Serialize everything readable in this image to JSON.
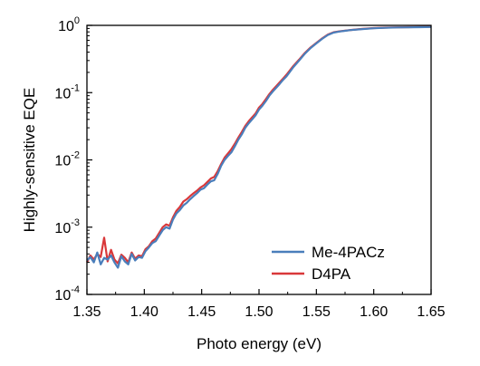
{
  "chart_data": {
    "type": "line",
    "title": "",
    "xlabel": "Photo energy (eV)",
    "ylabel": "Highly-sensitive EQE",
    "xlim": [
      1.35,
      1.65
    ],
    "ylim": [
      0.0001,
      1
    ],
    "yscale": "log",
    "grid": false,
    "legend_position": "bottom-right",
    "x_ticks": [
      {
        "value": 1.35,
        "label": "1.35"
      },
      {
        "value": 1.4,
        "label": "1.40"
      },
      {
        "value": 1.45,
        "label": "1.45"
      },
      {
        "value": 1.5,
        "label": "1.50"
      },
      {
        "value": 1.55,
        "label": "1.55"
      },
      {
        "value": 1.6,
        "label": "1.60"
      },
      {
        "value": 1.65,
        "label": "1.65"
      }
    ],
    "y_ticks": [
      {
        "value": 0.0001,
        "base": "10",
        "exp": "-4"
      },
      {
        "value": 0.001,
        "base": "10",
        "exp": "-3"
      },
      {
        "value": 0.01,
        "base": "10",
        "exp": "-2"
      },
      {
        "value": 0.1,
        "base": "10",
        "exp": "-1"
      },
      {
        "value": 1,
        "base": "10",
        "exp": "0"
      }
    ],
    "series": [
      {
        "name": "Me-4PACz",
        "color": "#4A7EBB",
        "x": [
          1.35,
          1.353,
          1.356,
          1.359,
          1.362,
          1.365,
          1.368,
          1.371,
          1.374,
          1.377,
          1.38,
          1.383,
          1.386,
          1.389,
          1.392,
          1.395,
          1.398,
          1.401,
          1.404,
          1.407,
          1.41,
          1.413,
          1.416,
          1.419,
          1.422,
          1.425,
          1.428,
          1.431,
          1.434,
          1.437,
          1.44,
          1.443,
          1.446,
          1.449,
          1.452,
          1.455,
          1.458,
          1.461,
          1.464,
          1.467,
          1.47,
          1.473,
          1.476,
          1.479,
          1.482,
          1.485,
          1.488,
          1.491,
          1.494,
          1.497,
          1.5,
          1.503,
          1.506,
          1.509,
          1.512,
          1.515,
          1.518,
          1.521,
          1.524,
          1.527,
          1.53,
          1.535,
          1.54,
          1.545,
          1.55,
          1.555,
          1.56,
          1.565,
          1.57,
          1.575,
          1.58,
          1.59,
          1.6,
          1.61,
          1.62,
          1.63,
          1.64,
          1.65
        ],
        "y": [
          0.00032,
          0.00036,
          0.0003,
          0.00042,
          0.00028,
          0.00035,
          0.00033,
          0.00038,
          0.0003,
          0.00025,
          0.00037,
          0.00031,
          0.00028,
          0.0004,
          0.00032,
          0.00036,
          0.00035,
          0.00044,
          0.0005,
          0.00058,
          0.00062,
          0.00075,
          0.0009,
          0.001,
          0.00095,
          0.0013,
          0.0016,
          0.0018,
          0.0021,
          0.0023,
          0.0026,
          0.0029,
          0.0032,
          0.0036,
          0.0038,
          0.0043,
          0.0048,
          0.005,
          0.0062,
          0.0082,
          0.01,
          0.0115,
          0.013,
          0.016,
          0.02,
          0.024,
          0.03,
          0.035,
          0.04,
          0.046,
          0.056,
          0.064,
          0.075,
          0.09,
          0.104,
          0.118,
          0.135,
          0.155,
          0.175,
          0.205,
          0.24,
          0.3,
          0.38,
          0.46,
          0.54,
          0.63,
          0.72,
          0.78,
          0.81,
          0.83,
          0.85,
          0.88,
          0.905,
          0.92,
          0.93,
          0.935,
          0.94,
          0.945
        ]
      },
      {
        "name": "D4PA",
        "color": "#D9383A",
        "x": [
          1.35,
          1.353,
          1.356,
          1.359,
          1.362,
          1.365,
          1.368,
          1.371,
          1.374,
          1.377,
          1.38,
          1.383,
          1.386,
          1.389,
          1.392,
          1.395,
          1.398,
          1.401,
          1.404,
          1.407,
          1.41,
          1.413,
          1.416,
          1.419,
          1.422,
          1.425,
          1.428,
          1.431,
          1.434,
          1.437,
          1.44,
          1.443,
          1.446,
          1.449,
          1.452,
          1.455,
          1.458,
          1.461,
          1.464,
          1.467,
          1.47,
          1.473,
          1.476,
          1.479,
          1.482,
          1.485,
          1.488,
          1.491,
          1.494,
          1.497,
          1.5,
          1.503,
          1.506,
          1.509,
          1.512,
          1.515,
          1.518,
          1.521,
          1.524,
          1.527,
          1.53,
          1.535,
          1.54,
          1.545,
          1.55,
          1.555,
          1.56,
          1.565,
          1.57,
          1.575,
          1.58,
          1.59,
          1.6,
          1.61,
          1.62,
          1.63,
          1.64,
          1.65
        ],
        "y": [
          0.0003,
          0.00038,
          0.00033,
          0.0004,
          0.00036,
          0.0007,
          0.00031,
          0.00046,
          0.00033,
          0.00029,
          0.00039,
          0.00035,
          0.0003,
          0.00042,
          0.00034,
          0.00038,
          0.00037,
          0.00047,
          0.00052,
          0.00062,
          0.00068,
          0.00082,
          0.001,
          0.0011,
          0.00105,
          0.0014,
          0.00175,
          0.002,
          0.0024,
          0.0026,
          0.0029,
          0.0032,
          0.0035,
          0.0039,
          0.0042,
          0.0047,
          0.0053,
          0.0056,
          0.0068,
          0.0087,
          0.0108,
          0.0125,
          0.0145,
          0.0175,
          0.0215,
          0.026,
          0.032,
          0.0375,
          0.043,
          0.049,
          0.06,
          0.068,
          0.08,
          0.095,
          0.11,
          0.125,
          0.142,
          0.162,
          0.185,
          0.215,
          0.25,
          0.31,
          0.39,
          0.47,
          0.55,
          0.64,
          0.73,
          0.79,
          0.815,
          0.835,
          0.855,
          0.885,
          0.91,
          0.925,
          0.935,
          0.94,
          0.945,
          0.95
        ]
      }
    ]
  }
}
